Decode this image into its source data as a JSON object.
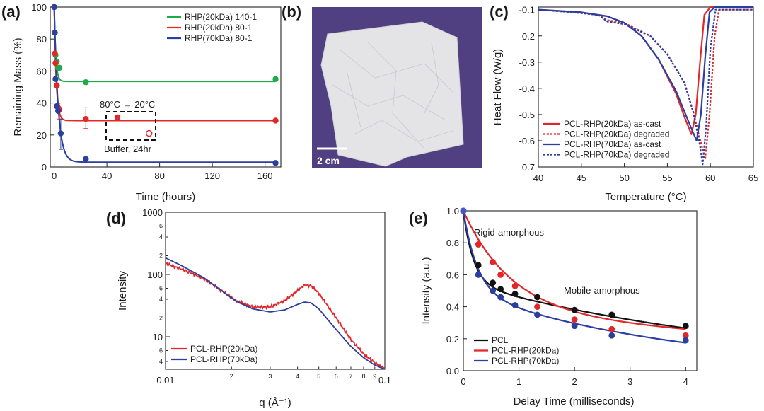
{
  "chart_data": [
    {
      "panel": "(a)",
      "type": "scatter",
      "xlabel": "Time (hours)",
      "ylabel": "Remaining Mass (%)",
      "xlim": [
        -3,
        172
      ],
      "ylim": [
        0,
        100
      ],
      "xticks": [
        0,
        40,
        80,
        120,
        160
      ],
      "yticks": [
        0,
        20,
        40,
        60,
        80,
        100
      ],
      "legend_placement": "top-right",
      "series": [
        {
          "name": "RHP(20kDa) 140-1",
          "color": "#1faa4a",
          "points": [
            [
              0,
              100
            ],
            [
              0.5,
              84
            ],
            [
              1,
              70
            ],
            [
              2,
              66
            ],
            [
              3,
              62
            ],
            [
              4,
              62
            ],
            [
              24,
              53
            ],
            [
              168,
              55
            ]
          ],
          "fit": {
            "plateau": 53.5,
            "tau": 1.2
          }
        },
        {
          "name": "RHP(20kDa) 80-1",
          "color": "#e3262a",
          "points": [
            [
              0,
              100
            ],
            [
              0.5,
              71
            ],
            [
              1,
              65
            ],
            [
              2,
              51
            ],
            [
              3,
              37
            ],
            [
              4,
              36
            ],
            [
              24,
              30
            ],
            [
              48,
              31
            ],
            [
              168,
              29
            ]
          ],
          "fit": {
            "plateau": 29,
            "tau": 1.5
          }
        },
        {
          "name": "RHP(70kDa) 80-1",
          "color": "#2b3fa0",
          "points": [
            [
              0,
              100
            ],
            [
              0.5,
              84
            ],
            [
              1,
              55
            ],
            [
              2,
              38
            ],
            [
              3,
              35
            ],
            [
              5,
              21
            ],
            [
              24,
              5
            ],
            [
              168,
              2.5
            ]
          ],
          "fit": {
            "plateau": 3,
            "tau": 3
          }
        }
      ],
      "error_bars": [
        [
          3,
          40,
          35
        ],
        [
          4,
          40,
          30
        ],
        [
          5,
          30,
          11
        ],
        [
          24,
          37,
          24
        ]
      ],
      "open_marker": [
        72,
        21
      ],
      "annotations": {
        "top": "80°C → 20°C",
        "bottom": "Buffer, 24hr"
      }
    },
    {
      "panel": "(c)",
      "type": "line",
      "xlabel": "Temperature (°C)",
      "ylabel": "Heat Flow (W/g)",
      "xlim": [
        40,
        65
      ],
      "ylim": [
        -0.7,
        -0.09
      ],
      "xticks": [
        40,
        45,
        50,
        55,
        60,
        65
      ],
      "yticks": [
        -0.1,
        -0.2,
        -0.3,
        -0.4,
        -0.5,
        -0.6,
        -0.7
      ],
      "legend_placement": "bottom-left",
      "series": [
        {
          "name": "PCL-RHP(20kDa) as-cast",
          "color": "#e3262a",
          "dash": false,
          "points": [
            [
              40,
              -0.1
            ],
            [
              45,
              -0.11
            ],
            [
              48,
              -0.125
            ],
            [
              50,
              -0.15
            ],
            [
              52,
              -0.2
            ],
            [
              54,
              -0.29
            ],
            [
              56,
              -0.42
            ],
            [
              57,
              -0.51
            ],
            [
              57.8,
              -0.575
            ],
            [
              58.3,
              -0.5
            ],
            [
              58.8,
              -0.3
            ],
            [
              59.3,
              -0.12
            ],
            [
              60,
              -0.09
            ],
            [
              65,
              -0.09
            ]
          ]
        },
        {
          "name": "PCL-RHP(20kDa) degraded",
          "color": "#e3262a",
          "dash": true,
          "points": [
            [
              40,
              -0.1
            ],
            [
              44,
              -0.11
            ],
            [
              47,
              -0.12
            ],
            [
              48,
              -0.14
            ],
            [
              50,
              -0.15
            ],
            [
              53,
              -0.2
            ],
            [
              55,
              -0.27
            ],
            [
              57,
              -0.38
            ],
            [
              58,
              -0.49
            ],
            [
              59,
              -0.62
            ],
            [
              59.4,
              -0.67
            ],
            [
              59.9,
              -0.5
            ],
            [
              60.5,
              -0.2
            ],
            [
              61,
              -0.1
            ],
            [
              65,
              -0.1
            ]
          ]
        },
        {
          "name": "PCL-RHP(70kDa) as-cast",
          "color": "#2b3fa0",
          "dash": false,
          "points": [
            [
              40,
              -0.1
            ],
            [
              45,
              -0.11
            ],
            [
              48,
              -0.125
            ],
            [
              50,
              -0.15
            ],
            [
              52,
              -0.2
            ],
            [
              54,
              -0.29
            ],
            [
              56,
              -0.41
            ],
            [
              57.5,
              -0.53
            ],
            [
              58.4,
              -0.6
            ],
            [
              58.9,
              -0.5
            ],
            [
              59.4,
              -0.28
            ],
            [
              59.9,
              -0.11
            ],
            [
              60.5,
              -0.09
            ],
            [
              65,
              -0.09
            ]
          ]
        },
        {
          "name": "PCL-RHP(70kDa) degraded",
          "color": "#2b3fa0",
          "dash": true,
          "points": [
            [
              40,
              -0.1
            ],
            [
              44,
              -0.11
            ],
            [
              47,
              -0.12
            ],
            [
              48,
              -0.145
            ],
            [
              50,
              -0.155
            ],
            [
              53,
              -0.2
            ],
            [
              55,
              -0.27
            ],
            [
              57,
              -0.38
            ],
            [
              58,
              -0.49
            ],
            [
              58.8,
              -0.62
            ],
            [
              59.1,
              -0.69
            ],
            [
              59.5,
              -0.55
            ],
            [
              60,
              -0.25
            ],
            [
              60.6,
              -0.1
            ],
            [
              65,
              -0.1
            ]
          ]
        }
      ]
    },
    {
      "panel": "(d)",
      "type": "line",
      "xlabel": "q (Å⁻¹)",
      "ylabel": "Intensity",
      "xscale": "log",
      "yscale": "log",
      "xlim": [
        0.01,
        0.1
      ],
      "ylim": [
        3,
        1000
      ],
      "legend_placement": "bottom-left",
      "x_tick_labels": [
        {
          "v": 0.01,
          "t": "0.01",
          "major": true
        },
        {
          "v": 0.02,
          "t": "2"
        },
        {
          "v": 0.03,
          "t": "3"
        },
        {
          "v": 0.04,
          "t": "4"
        },
        {
          "v": 0.05,
          "t": "5"
        },
        {
          "v": 0.06,
          "t": "6"
        },
        {
          "v": 0.07,
          "t": "7"
        },
        {
          "v": 0.08,
          "t": "8"
        },
        {
          "v": 0.09,
          "t": "9"
        },
        {
          "v": 0.1,
          "t": "0.1",
          "major": true
        }
      ],
      "y_tick_labels": [
        {
          "v": 1000,
          "t": "1000",
          "major": true
        },
        {
          "v": 600,
          "t": "6"
        },
        {
          "v": 400,
          "t": "4"
        },
        {
          "v": 200,
          "t": "2"
        },
        {
          "v": 100,
          "t": "100",
          "major": true
        },
        {
          "v": 60,
          "t": "6"
        },
        {
          "v": 40,
          "t": "4"
        },
        {
          "v": 20,
          "t": "2"
        },
        {
          "v": 10,
          "t": "10",
          "major": true
        },
        {
          "v": 6,
          "t": "6"
        },
        {
          "v": 4,
          "t": "4"
        }
      ],
      "series": [
        {
          "name": "PCL-RHP(20kDa)",
          "color": "#e3262a",
          "noisy": true,
          "points": [
            [
              0.01,
              150
            ],
            [
              0.012,
              120
            ],
            [
              0.015,
              85
            ],
            [
              0.018,
              55
            ],
            [
              0.021,
              38
            ],
            [
              0.025,
              30
            ],
            [
              0.03,
              30
            ],
            [
              0.035,
              38
            ],
            [
              0.04,
              55
            ],
            [
              0.043,
              68
            ],
            [
              0.046,
              66
            ],
            [
              0.05,
              50
            ],
            [
              0.06,
              20
            ],
            [
              0.07,
              9
            ],
            [
              0.08,
              5.3
            ],
            [
              0.09,
              3.8
            ],
            [
              0.1,
              3.1
            ]
          ]
        },
        {
          "name": "PCL-RHP(70kDa)",
          "color": "#2b3fa0",
          "noisy": false,
          "points": [
            [
              0.01,
              185
            ],
            [
              0.012,
              135
            ],
            [
              0.015,
              88
            ],
            [
              0.018,
              55
            ],
            [
              0.021,
              37
            ],
            [
              0.025,
              28
            ],
            [
              0.03,
              25
            ],
            [
              0.035,
              27
            ],
            [
              0.04,
              33
            ],
            [
              0.043,
              36
            ],
            [
              0.046,
              35
            ],
            [
              0.05,
              28
            ],
            [
              0.06,
              13
            ],
            [
              0.07,
              7
            ],
            [
              0.08,
              4.6
            ],
            [
              0.09,
              3.5
            ],
            [
              0.1,
              3.0
            ]
          ]
        }
      ]
    },
    {
      "panel": "(e)",
      "type": "scatter",
      "xlabel": "Delay Time (milliseconds)",
      "ylabel": "Intensity (a.u.)",
      "xlim": [
        0,
        4.2
      ],
      "ylim": [
        0,
        1.0
      ],
      "xticks": [
        0,
        1,
        2,
        3,
        4
      ],
      "yticks": [
        0.0,
        0.2,
        0.4,
        0.6,
        0.8,
        1.0
      ],
      "legend_placement": "bottom-left",
      "series": [
        {
          "name": "PCL",
          "color": "#111111",
          "points": [
            [
              0,
              1
            ],
            [
              0.27,
              0.66
            ],
            [
              0.53,
              0.55
            ],
            [
              0.67,
              0.51
            ],
            [
              0.93,
              0.48
            ],
            [
              1.33,
              0.46
            ],
            [
              2,
              0.38
            ],
            [
              2.67,
              0.35
            ],
            [
              4,
              0.28
            ]
          ],
          "fit": {
            "A1": 0.45,
            "t1": 0.18,
            "A2": 0.55,
            "t2": 5.5
          }
        },
        {
          "name": "PCL-RHP(20kDa)",
          "color": "#e3262a",
          "points": [
            [
              0,
              1
            ],
            [
              0.27,
              0.79
            ],
            [
              0.53,
              0.68
            ],
            [
              0.67,
              0.6
            ],
            [
              0.93,
              0.53
            ],
            [
              1.33,
              0.4
            ],
            [
              2,
              0.32
            ],
            [
              2.67,
              0.26
            ],
            [
              4,
              0.22
            ]
          ],
          "fit": {
            "A1": 0.62,
            "t1": 0.85,
            "A2": 0.38,
            "t2": 10
          }
        },
        {
          "name": "PCL-RHP(70kDa)",
          "color": "#2b3fa0",
          "points": [
            [
              0,
              1
            ],
            [
              0.27,
              0.6
            ],
            [
              0.53,
              0.5
            ],
            [
              0.67,
              0.46
            ],
            [
              0.93,
              0.41
            ],
            [
              1.33,
              0.35
            ],
            [
              2,
              0.28
            ],
            [
              2.67,
              0.22
            ],
            [
              4,
              0.19
            ]
          ],
          "fit": {
            "A1": 0.5,
            "t1": 0.25,
            "A2": 0.5,
            "t2": 3.8
          }
        }
      ],
      "annotations": {
        "rigid": "Rigid-amorphous",
        "mobile": "Mobile-amorphous"
      }
    }
  ],
  "panels": {
    "a": "(a)",
    "b": "(b)",
    "c": "(c)",
    "d": "(d)",
    "e": "(e)"
  },
  "photo": {
    "scale_label": "2 cm",
    "colors": {
      "background": "#5b4a8e",
      "film": "#e6e6e8"
    }
  }
}
